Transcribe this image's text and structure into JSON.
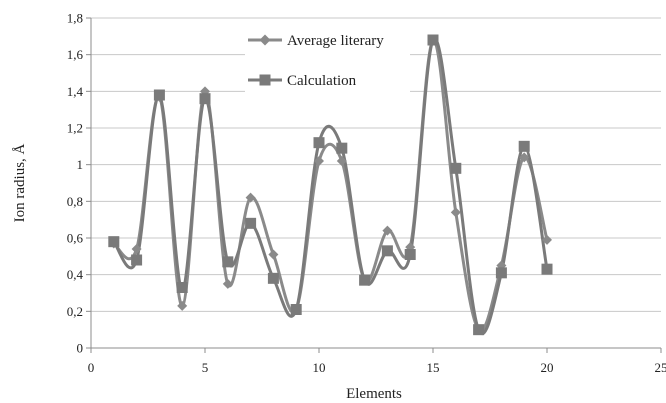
{
  "chart_data": {
    "type": "line",
    "xlabel": "Elements",
    "ylabel": "Ion radius, Å",
    "xlim": [
      0,
      25
    ],
    "ylim": [
      0,
      1.8
    ],
    "x_ticks": [
      0,
      5,
      10,
      15,
      20,
      25
    ],
    "y_ticks": [
      0,
      0.2,
      0.4,
      0.6,
      0.8,
      1,
      1.2,
      1.4,
      1.6,
      1.8
    ],
    "x_tick_labels": [
      "0",
      "5",
      "10",
      "15",
      "20",
      "25"
    ],
    "y_tick_labels": [
      "0",
      "0,2",
      "0,4",
      "0,6",
      "0,8",
      "1",
      "1,2",
      "1,4",
      "1,6",
      "1,8"
    ],
    "grid": "horizontal",
    "legend_position": "top-center",
    "smooth": true,
    "x": [
      1,
      2,
      3,
      4,
      5,
      6,
      7,
      8,
      9,
      10,
      11,
      12,
      13,
      14,
      15,
      16,
      17,
      18,
      19,
      20
    ],
    "series": [
      {
        "name": "Average literary",
        "marker": "diamond",
        "color": "#8a8a8a",
        "values": [
          0.57,
          0.54,
          1.37,
          0.23,
          1.4,
          0.35,
          0.82,
          0.51,
          0.21,
          1.02,
          1.02,
          0.37,
          0.64,
          0.55,
          1.68,
          0.74,
          0.1,
          0.45,
          1.04,
          0.59
        ]
      },
      {
        "name": "Calculation",
        "marker": "square",
        "color": "#7a7a7a",
        "values": [
          0.58,
          0.48,
          1.38,
          0.33,
          1.36,
          0.47,
          0.68,
          0.38,
          0.21,
          1.12,
          1.09,
          0.37,
          0.53,
          0.51,
          1.68,
          0.98,
          0.1,
          0.41,
          1.1,
          0.43
        ]
      }
    ]
  }
}
